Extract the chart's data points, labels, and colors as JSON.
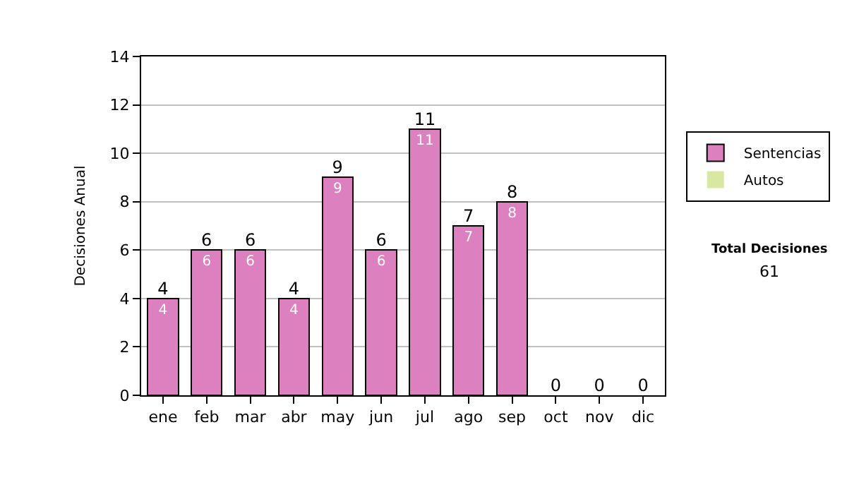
{
  "chart_data": {
    "type": "bar",
    "stacked": true,
    "ylabel": "Decisiones Anual",
    "categories": [
      "ene",
      "feb",
      "mar",
      "abr",
      "may",
      "jun",
      "jul",
      "ago",
      "sep",
      "oct",
      "nov",
      "dic"
    ],
    "series": [
      {
        "name": "Sentencias",
        "color": "#dd80c0",
        "values": [
          4,
          6,
          6,
          4,
          9,
          6,
          11,
          7,
          8,
          0,
          0,
          0
        ],
        "value_labels": [
          "4",
          "6",
          "6",
          "4",
          "9",
          "6",
          "11",
          "7",
          "8",
          null,
          null,
          null
        ]
      },
      {
        "name": "Autos",
        "color": "#d8e8a0",
        "values": [
          0,
          0,
          0,
          0,
          0,
          0,
          0,
          0,
          0,
          0,
          0,
          0
        ]
      }
    ],
    "totals": [
      "4",
      "6",
      "6",
      "4",
      "9",
      "6",
      "11",
      "7",
      "8",
      "0",
      "0",
      "0"
    ],
    "ylim": [
      0,
      14
    ],
    "yticks": [
      0,
      2,
      4,
      6,
      8,
      10,
      12,
      14
    ],
    "grid": "y",
    "legend": "right",
    "annotations": [
      "Total Decisiones",
      "61"
    ]
  }
}
